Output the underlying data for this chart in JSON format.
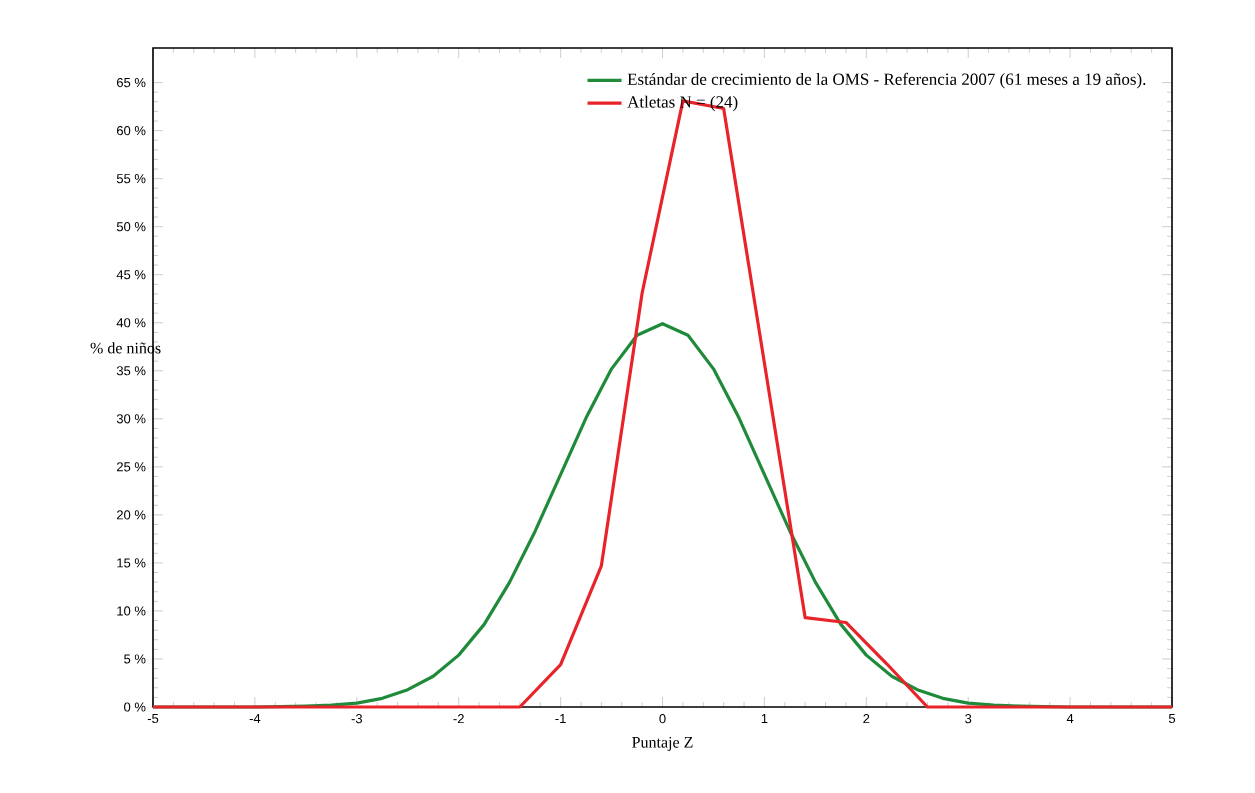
{
  "chart_data": {
    "type": "line",
    "xlabel": "Puntaje Z",
    "ylabel": "% de niños",
    "xlim": [
      -5,
      5
    ],
    "ylim": [
      0,
      68.6
    ],
    "xticks": [
      -5,
      -4,
      -3,
      -2,
      -1,
      0,
      1,
      2,
      3,
      4,
      5
    ],
    "yticks": [
      {
        "value": 0,
        "label": "0 %"
      },
      {
        "value": 5,
        "label": "5 %"
      },
      {
        "value": 10,
        "label": "10 %"
      },
      {
        "value": 15,
        "label": "15 %"
      },
      {
        "value": 20,
        "label": "20 %"
      },
      {
        "value": 25,
        "label": "25 %"
      },
      {
        "value": 30,
        "label": "30 %"
      },
      {
        "value": 35,
        "label": "35 %"
      },
      {
        "value": 40,
        "label": "40 %"
      },
      {
        "value": 45,
        "label": "45 %"
      },
      {
        "value": 50,
        "label": "50 %"
      },
      {
        "value": 55,
        "label": "55 %"
      },
      {
        "value": 60,
        "label": "60 %"
      },
      {
        "value": 65,
        "label": "65 %"
      }
    ],
    "legend": "top right",
    "series": [
      {
        "name": "Estándar de crecimiento de la OMS - Referencia 2007 (61 meses a 19 años).",
        "color": "#1f8a3a",
        "x": [
          -5,
          -4,
          -3.5,
          -3.25,
          -3,
          -2.75,
          -2.5,
          -2.25,
          -2,
          -1.75,
          -1.5,
          -1.25,
          -1,
          -0.75,
          -0.5,
          -0.25,
          0,
          0.25,
          0.5,
          0.75,
          1,
          1.25,
          1.5,
          1.75,
          2,
          2.25,
          2.5,
          2.75,
          3,
          3.25,
          3.5,
          4,
          5
        ],
        "values": [
          0,
          0,
          0.1,
          0.2,
          0.4,
          0.9,
          1.8,
          3.2,
          5.4,
          8.6,
          13,
          18.3,
          24.2,
          30.1,
          35.2,
          38.7,
          39.9,
          38.7,
          35.2,
          30.1,
          24.2,
          18.3,
          13,
          8.6,
          5.4,
          3.2,
          1.8,
          0.9,
          0.4,
          0.2,
          0.1,
          0,
          0
        ]
      },
      {
        "name": "Atletas N = (24)",
        "color": "#e8242a",
        "x": [
          -5,
          -1.4,
          -1,
          -0.6,
          -0.2,
          0.2,
          0.6,
          1.4,
          1.8,
          2.2,
          2.6,
          5
        ],
        "values": [
          0,
          0,
          4.4,
          14.7,
          43.1,
          63.1,
          62.3,
          9.3,
          8.8,
          4.5,
          0,
          0
        ]
      }
    ]
  }
}
